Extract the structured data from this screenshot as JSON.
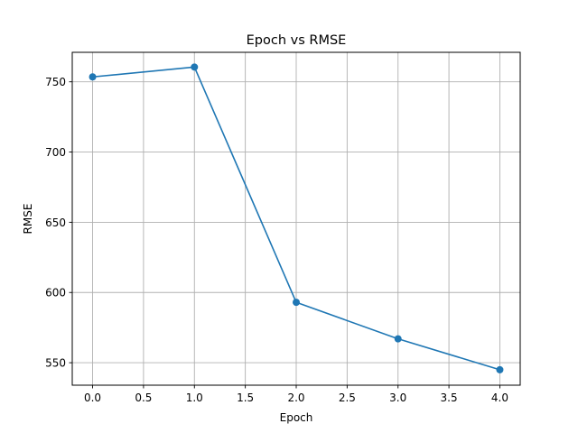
{
  "chart_data": {
    "type": "line",
    "title": "Epoch vs RMSE",
    "xlabel": "Epoch",
    "ylabel": "RMSE",
    "x": [
      0,
      1,
      2,
      3,
      4
    ],
    "series": [
      {
        "values": [
          753.5,
          760.5,
          593,
          567,
          545
        ],
        "color": "#1f77b4",
        "marker": "circle"
      }
    ],
    "xlim": [
      -0.2,
      4.2
    ],
    "ylim": [
      534,
      771
    ],
    "xticks": [
      0.0,
      0.5,
      1.0,
      1.5,
      2.0,
      2.5,
      3.0,
      3.5,
      4.0
    ],
    "xtick_labels": [
      "0.0",
      "0.5",
      "1.0",
      "1.5",
      "2.0",
      "2.5",
      "3.0",
      "3.5",
      "4.0"
    ],
    "yticks": [
      550,
      600,
      650,
      700,
      750
    ],
    "ytick_labels": [
      "550",
      "600",
      "650",
      "700",
      "750"
    ],
    "grid": true,
    "legend": false
  }
}
